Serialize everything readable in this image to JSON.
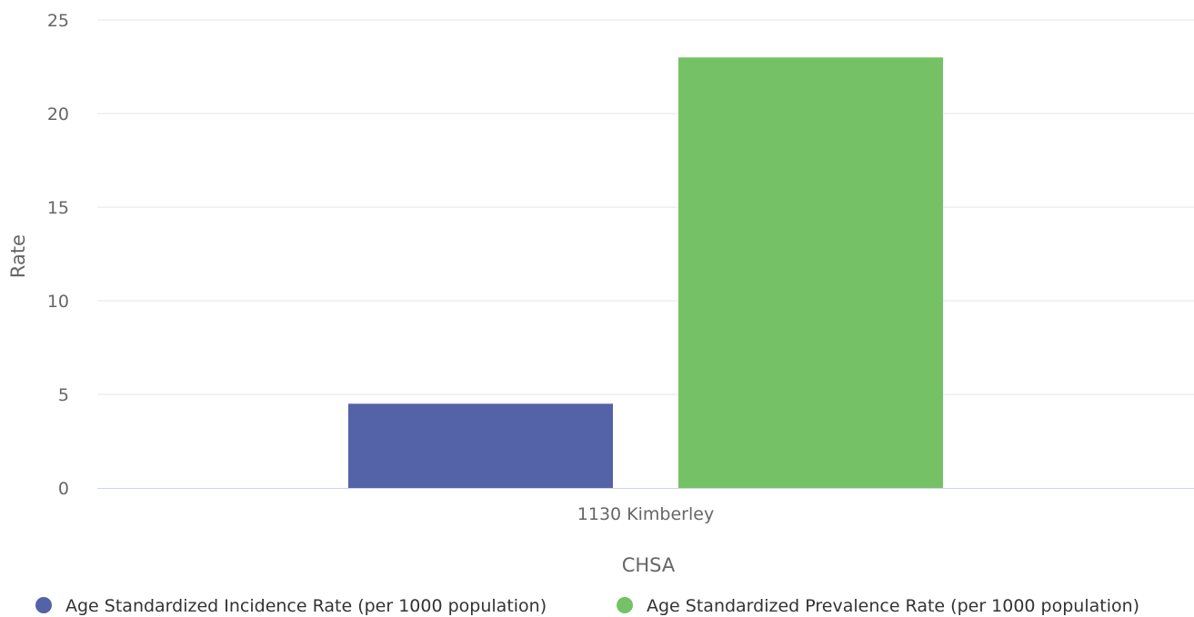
{
  "chart_data": {
    "type": "bar",
    "categories": [
      "1130 Kimberley"
    ],
    "series": [
      {
        "name": "Age Standardized Incidence Rate (per 1000 population)",
        "values": [
          4.5
        ],
        "color": "#5462a8"
      },
      {
        "name": "Age Standardized Prevalence Rate (per 1000 population)",
        "values": [
          23.0
        ],
        "color": "#74c265"
      }
    ],
    "title": "",
    "xlabel": "CHSA",
    "ylabel": "Rate",
    "ylim": [
      0,
      25
    ],
    "yticks": [
      "0",
      "5",
      "10",
      "15",
      "20",
      "25"
    ],
    "grid": true,
    "legend_position": "bottom"
  },
  "colors": {
    "grid": "#e6e6e6",
    "axis_line": "#ccd6eb",
    "tick_text": "#666666",
    "legend_text": "#333333"
  }
}
